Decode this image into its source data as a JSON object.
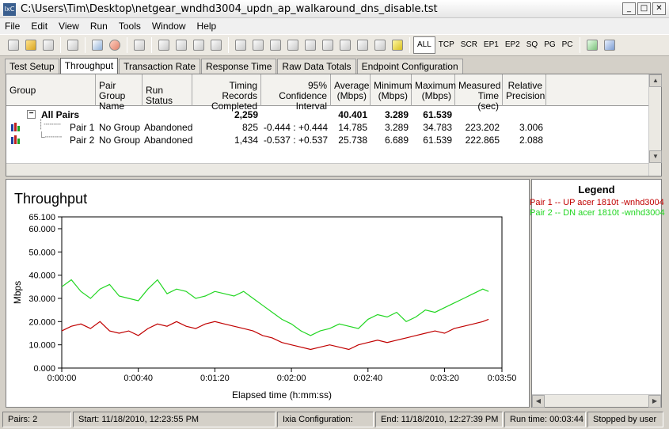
{
  "window": {
    "title": "C:\\Users\\Tim\\Desktop\\netgear_wndhd3004_updn_ap_walkaround_dns_disable.tst",
    "icon_label": "IxC",
    "controls": [
      "_",
      "□",
      "✕"
    ]
  },
  "menu": [
    "File",
    "Edit",
    "View",
    "Run",
    "Tools",
    "Window",
    "Help"
  ],
  "toolbar": {
    "text_buttons": [
      "ALL",
      "TCP",
      "SCR",
      "EP1",
      "EP2",
      "SQ",
      "PG",
      "PC"
    ],
    "active": "ALL"
  },
  "tabs": [
    "Test Setup",
    "Throughput",
    "Transaction Rate",
    "Response Time",
    "Raw Data Totals",
    "Endpoint Configuration"
  ],
  "active_tab": "Throughput",
  "grid": {
    "columns": [
      "Group",
      "Pair Group Name",
      "Run Status",
      "Timing Records Completed",
      "95% Confidence Interval",
      "Average (Mbps)",
      "Minimum (Mbps)",
      "Maximum (Mbps)",
      "Measured Time (sec)",
      "Relative Precision"
    ],
    "all_pairs": {
      "label": "All Pairs",
      "expand": "−",
      "records": "2,259",
      "average": "40.401",
      "minimum": "3.289",
      "maximum": "61.539"
    },
    "rows": [
      {
        "pair": "Pair 1",
        "group_name": "No Group",
        "status": "Abandoned",
        "records": "825",
        "ci": "-0.444 : +0.444",
        "average": "14.785",
        "minimum": "3.289",
        "maximum": "34.783",
        "time": "223.202",
        "precision": "3.006"
      },
      {
        "pair": "Pair 2",
        "group_name": "No Group",
        "status": "Abandoned",
        "records": "1,434",
        "ci": "-0.537 : +0.537",
        "average": "25.738",
        "minimum": "6.689",
        "maximum": "61.539",
        "time": "222.865",
        "precision": "2.088"
      }
    ]
  },
  "chart_data": {
    "type": "line",
    "title": "Throughput",
    "xlabel": "Elapsed time (h:mm:ss)",
    "ylabel": "Mbps",
    "x_ticks": [
      "0:00:00",
      "0:00:40",
      "0:01:20",
      "0:02:00",
      "0:02:40",
      "0:03:20",
      "0:03:50"
    ],
    "x_tick_seconds": [
      0,
      40,
      80,
      120,
      160,
      200,
      230
    ],
    "y_ticks": [
      "0.000",
      "10.000",
      "20.000",
      "30.000",
      "40.000",
      "50.000",
      "60.000",
      "65.100"
    ],
    "y_tick_values": [
      0,
      10,
      20,
      30,
      40,
      50,
      60,
      65.1
    ],
    "xlim": [
      0,
      230
    ],
    "ylim": [
      0,
      65.1
    ],
    "grid": false,
    "series": [
      {
        "name": "Pair 1 -- UP acer 1810t -wnhd3004",
        "color": "#c00000",
        "x": [
          0,
          5,
          10,
          15,
          20,
          25,
          30,
          35,
          40,
          45,
          50,
          55,
          60,
          65,
          70,
          75,
          80,
          85,
          90,
          95,
          100,
          105,
          110,
          115,
          120,
          125,
          130,
          135,
          140,
          145,
          150,
          155,
          160,
          165,
          170,
          175,
          180,
          185,
          190,
          195,
          200,
          205,
          210,
          215,
          220,
          223
        ],
        "y": [
          16,
          18,
          19,
          17,
          20,
          16,
          15,
          16,
          14,
          17,
          19,
          18,
          20,
          18,
          17,
          19,
          20,
          19,
          18,
          17,
          16,
          14,
          13,
          11,
          10,
          9,
          8,
          9,
          10,
          9,
          8,
          10,
          11,
          12,
          11,
          12,
          13,
          14,
          15,
          16,
          15,
          17,
          18,
          19,
          20,
          21
        ]
      },
      {
        "name": "Pair 2 -- DN acer 1810t -wnhd3004",
        "color": "#22d622",
        "x": [
          0,
          5,
          10,
          15,
          20,
          25,
          30,
          35,
          40,
          45,
          50,
          55,
          60,
          65,
          70,
          75,
          80,
          85,
          90,
          95,
          100,
          105,
          110,
          115,
          120,
          125,
          130,
          135,
          140,
          145,
          150,
          155,
          160,
          165,
          170,
          175,
          180,
          185,
          190,
          195,
          200,
          205,
          210,
          215,
          220,
          223
        ],
        "y": [
          35,
          38,
          33,
          30,
          34,
          36,
          31,
          30,
          29,
          34,
          38,
          32,
          34,
          33,
          30,
          31,
          33,
          32,
          31,
          33,
          30,
          27,
          24,
          21,
          19,
          16,
          14,
          16,
          17,
          19,
          18,
          17,
          21,
          23,
          22,
          24,
          20,
          22,
          25,
          24,
          26,
          28,
          30,
          32,
          34,
          33
        ]
      }
    ],
    "legend": {
      "title": "Legend",
      "entries": [
        "Pair 1 -- UP acer 1810t -wnhd3004",
        "Pair 2 -- DN acer 1810t -wnhd3004"
      ],
      "placement": "right-panel"
    }
  },
  "status": {
    "pairs": "Pairs: 2",
    "start": "Start: 11/18/2010, 12:23:55 PM",
    "config": "Ixia Configuration:",
    "end": "End: 11/18/2010, 12:27:39 PM",
    "runtime": "Run time: 00:03:44",
    "stopped": "Stopped by user"
  },
  "colors": {
    "pair1": "#c00000",
    "pair2": "#22d622"
  }
}
